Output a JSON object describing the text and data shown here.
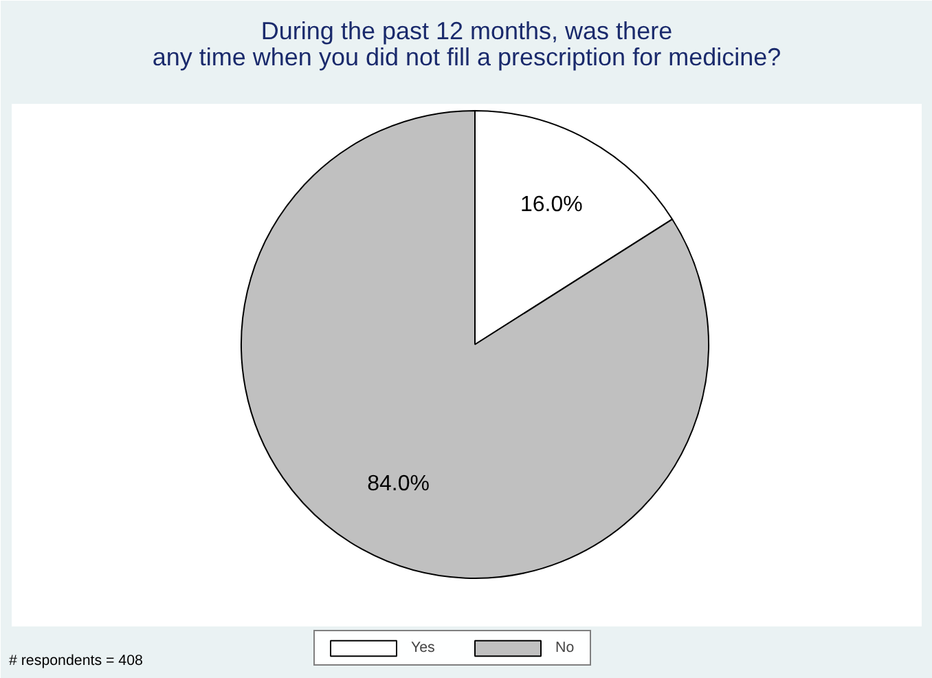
{
  "chart_data": {
    "type": "pie",
    "title": "During the past 12 months, was there\nany time when you did not fill a prescription for medicine?",
    "categories": [
      "Yes",
      "No"
    ],
    "values": [
      16.0,
      84.0
    ],
    "colors": [
      "#ffffff",
      "#c0c0c0"
    ],
    "value_labels": [
      "16.0%",
      "84.0%"
    ],
    "legend": "bottom",
    "annotations": [
      "# respondents = 408"
    ]
  }
}
